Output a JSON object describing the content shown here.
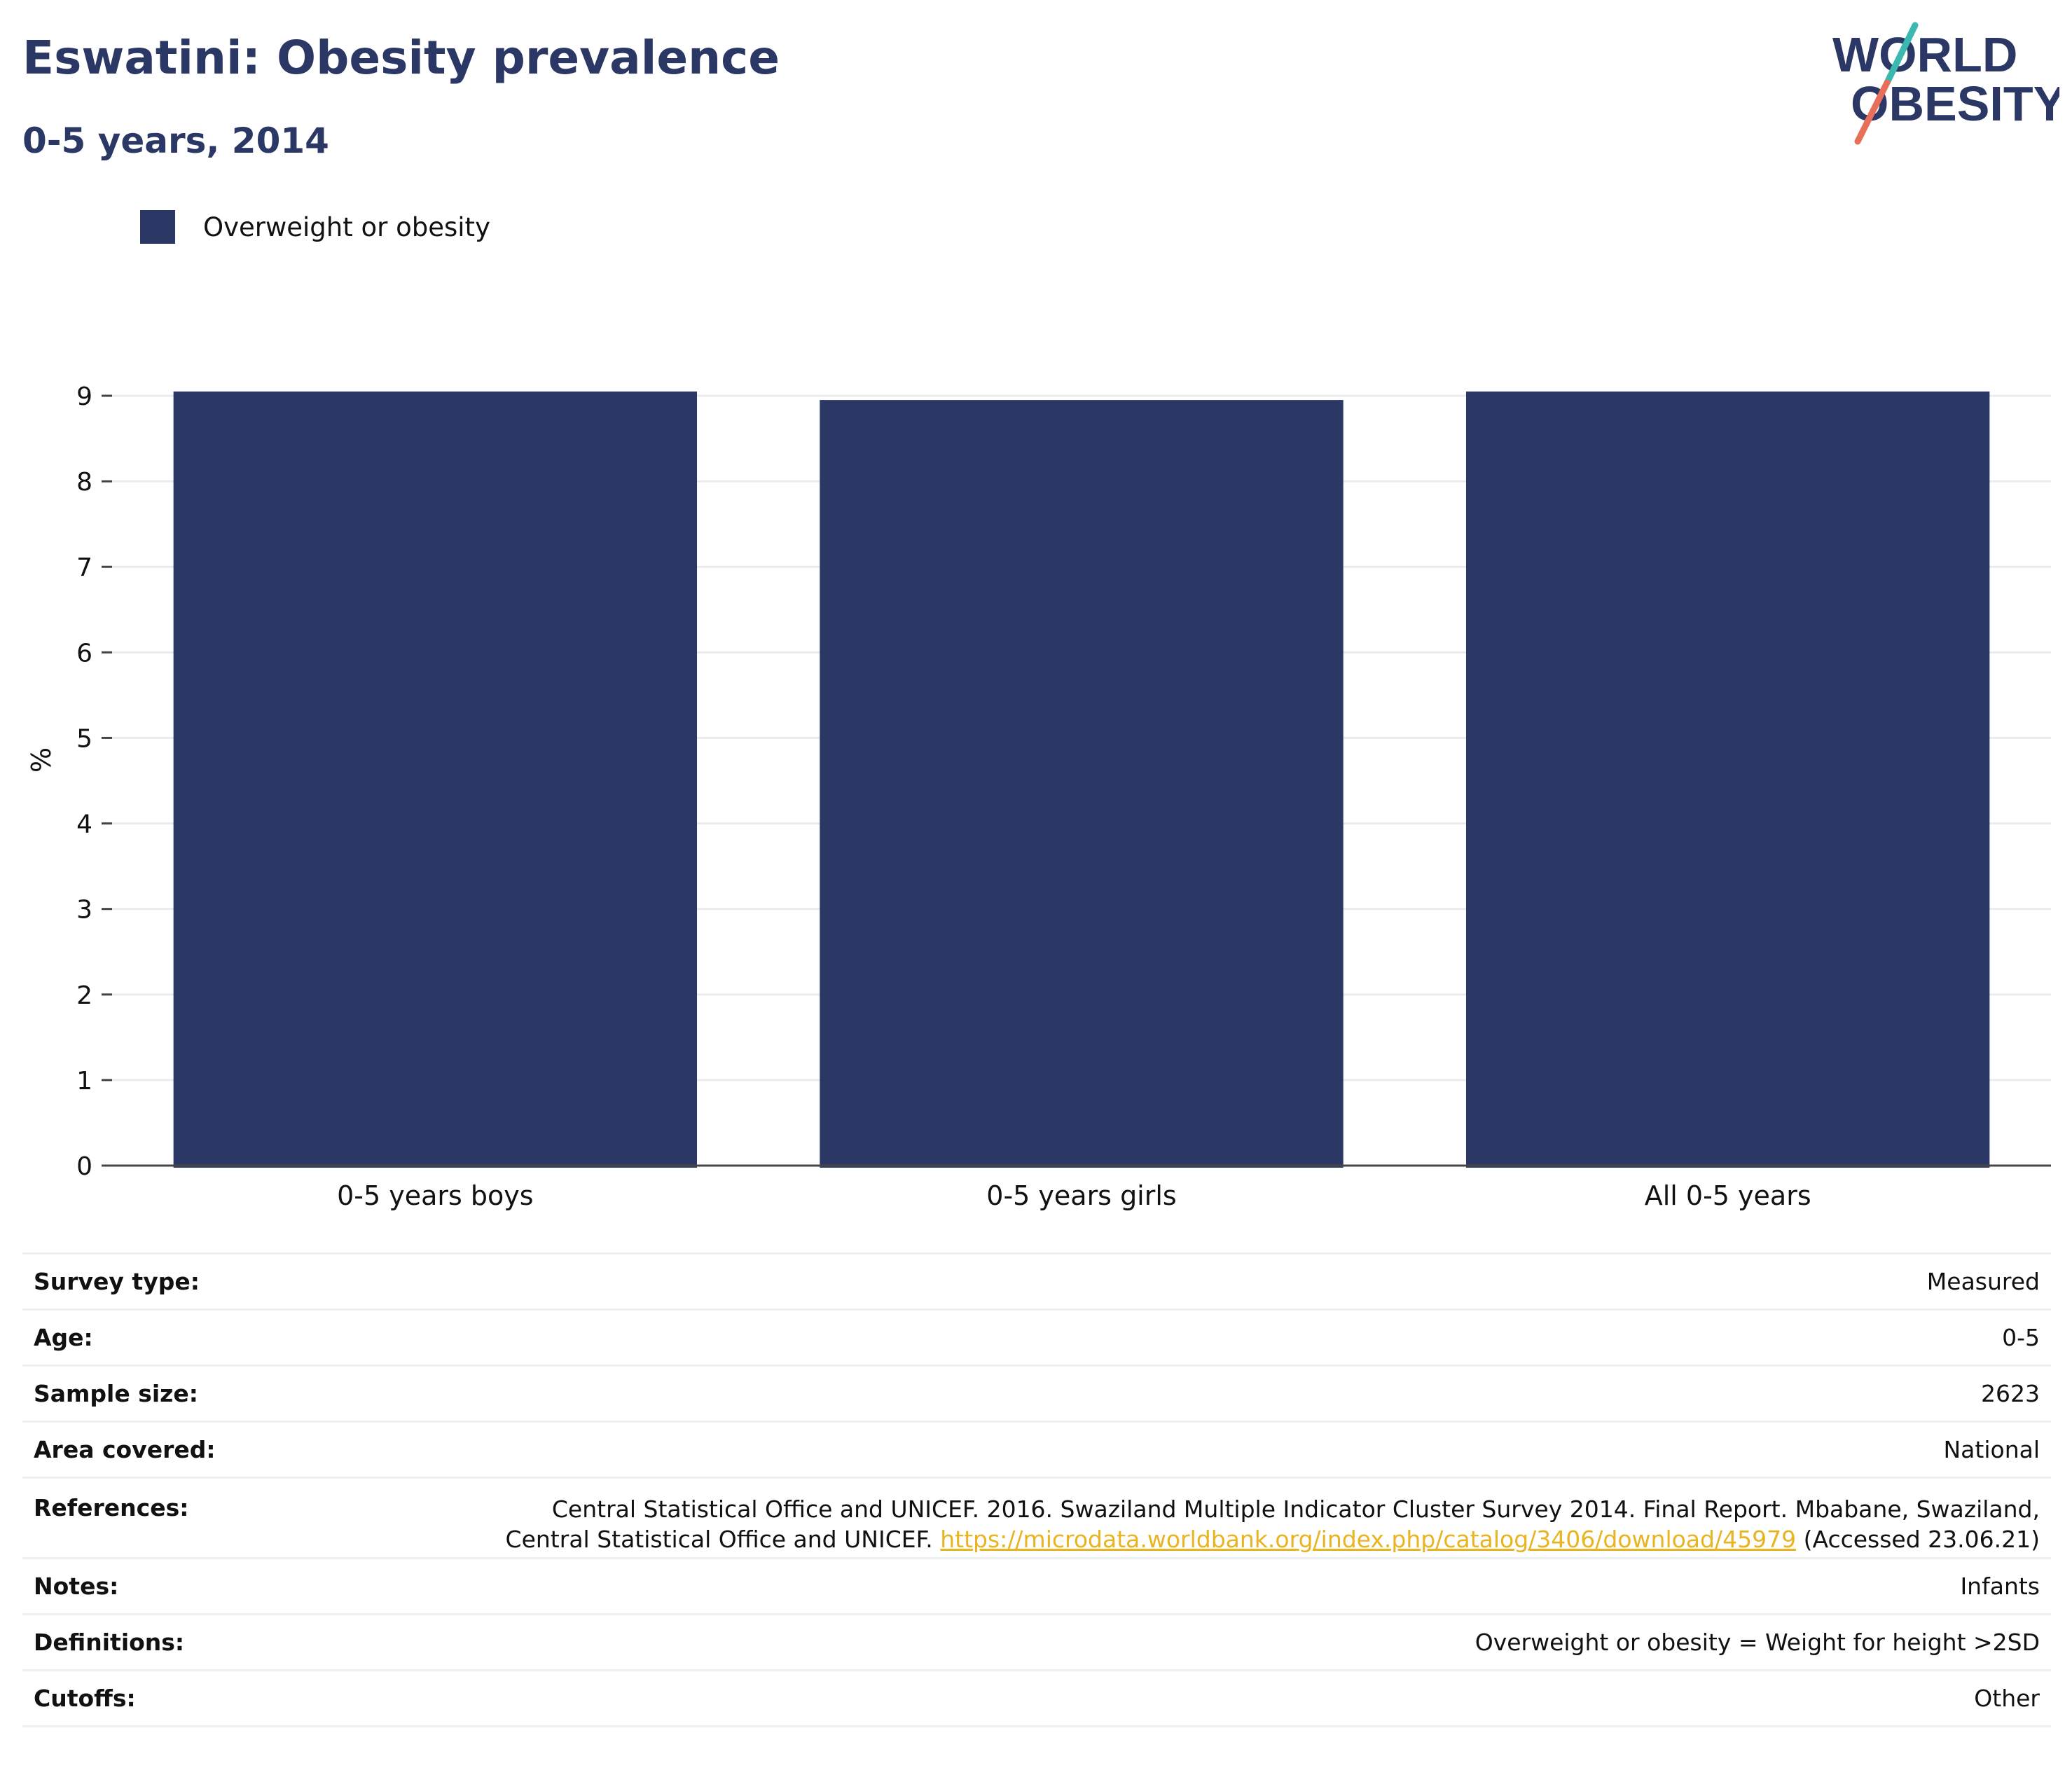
{
  "header": {
    "title": "Eswatini: Obesity prevalence",
    "subtitle": "0-5 years, 2014"
  },
  "logo": {
    "line1": "WORLD",
    "line2": "OBESITY",
    "colors": {
      "text": "#2b3764",
      "slash_top": "#3bb8b0",
      "slash_bottom": "#e8705a"
    }
  },
  "legend": {
    "items": [
      {
        "label": "Overweight or obesity",
        "color": "#2b3764"
      }
    ]
  },
  "chart_data": {
    "type": "bar",
    "categories": [
      "0-5 years boys",
      "0-5 years girls",
      "All 0-5 years"
    ],
    "series": [
      {
        "name": "Overweight or obesity",
        "values": [
          9.05,
          8.95,
          9.05
        ],
        "color": "#2b3764"
      }
    ],
    "ylabel": "%",
    "xlabel": "",
    "ylim": [
      0,
      9
    ],
    "yticks": [
      0,
      1,
      2,
      3,
      4,
      5,
      6,
      7,
      8,
      9
    ],
    "grid": true,
    "legend_position": "top-left"
  },
  "info": {
    "survey_type": {
      "label": "Survey type:",
      "value": "Measured"
    },
    "age": {
      "label": "Age:",
      "value": "0-5"
    },
    "sample_size": {
      "label": "Sample size:",
      "value": "2623"
    },
    "area_covered": {
      "label": "Area covered:",
      "value": "National"
    },
    "references": {
      "label": "References:",
      "line1": "Central Statistical Office and UNICEF. 2016. Swaziland Multiple Indicator Cluster Survey 2014. Final Report. Mbabane, Swaziland,",
      "line2_prefix": "Central Statistical Office and UNICEF.",
      "link": "https://microdata.worldbank.org/index.php/catalog/3406/download/45979",
      "line2_suffix": "(Accessed 23.06.21)"
    },
    "notes": {
      "label": "Notes:",
      "value": "Infants"
    },
    "definitions": {
      "label": "Definitions:",
      "value": "Overweight or obesity = Weight for height >2SD"
    },
    "cutoffs": {
      "label": "Cutoffs:",
      "value": "Other"
    }
  }
}
